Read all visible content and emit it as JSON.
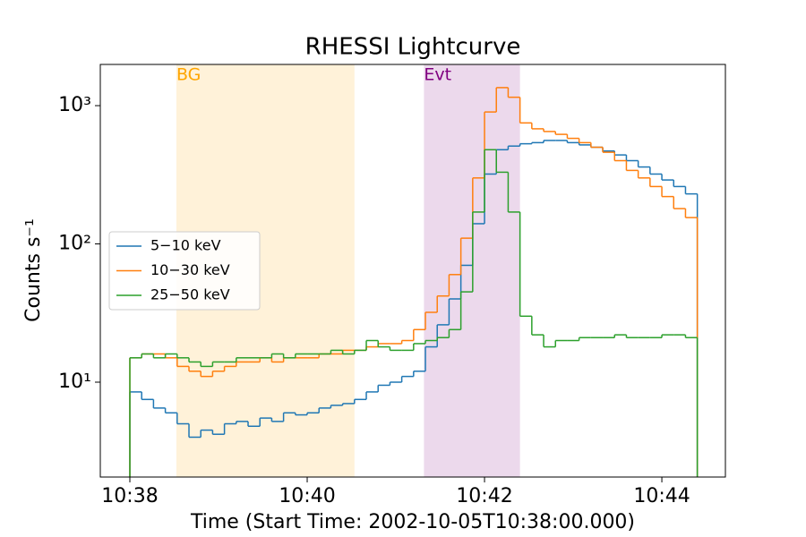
{
  "chart_data": {
    "type": "step",
    "title": "RHESSI Lightcurve",
    "xlabel": "Time (Start Time: 2002-10-05T10:38:00.000)",
    "ylabel": "Counts s⁻¹",
    "x": [
      0,
      8,
      16,
      24,
      32,
      40,
      48,
      56,
      64,
      72,
      80,
      88,
      96,
      104,
      112,
      120,
      128,
      136,
      144,
      152,
      160,
      168,
      176,
      184,
      192,
      200,
      208,
      216,
      224,
      232,
      240,
      248,
      256,
      264,
      272,
      280,
      288,
      296,
      304,
      312,
      320,
      328,
      336,
      344,
      352,
      360,
      368,
      376
    ],
    "series": [
      {
        "name": "5−10 keV",
        "color": "#1f77b4",
        "values": [
          8.5,
          7.5,
          6.5,
          6,
          5,
          4,
          4.5,
          4.2,
          5,
          5.2,
          4.8,
          5.5,
          5.2,
          6,
          5.8,
          6,
          6.5,
          6.8,
          7,
          7.5,
          8.5,
          9.5,
          10,
          11,
          12,
          18,
          26,
          40,
          70,
          140,
          320,
          480,
          510,
          530,
          540,
          560,
          560,
          540,
          520,
          500,
          470,
          440,
          400,
          360,
          320,
          290,
          260,
          230
        ]
      },
      {
        "name": "10−30 keV",
        "color": "#ff7f0e",
        "values": [
          15,
          16,
          16,
          15,
          13,
          12,
          11,
          12,
          13,
          14,
          14,
          15,
          14,
          15,
          15,
          15,
          16,
          16,
          17,
          17,
          18,
          19,
          19,
          20,
          24,
          32,
          42,
          60,
          110,
          300,
          900,
          1350,
          1150,
          750,
          680,
          650,
          620,
          580,
          540,
          500,
          460,
          400,
          340,
          300,
          260,
          220,
          180,
          155
        ]
      },
      {
        "name": "25−50 keV",
        "color": "#2ca02c",
        "values": [
          15,
          16,
          15,
          16,
          15,
          14,
          13,
          14,
          14,
          15,
          15,
          15,
          16,
          15,
          16,
          16,
          16,
          17,
          16,
          17,
          20,
          18,
          17,
          17,
          19,
          20,
          21,
          24,
          45,
          170,
          480,
          330,
          170,
          30,
          22,
          18,
          20,
          20,
          21,
          21,
          21,
          22,
          21,
          21,
          21,
          22,
          22,
          21
        ]
      }
    ],
    "spans": [
      {
        "label": "BG",
        "start": 31.5,
        "end": 152,
        "color": "#ffa500"
      },
      {
        "label": "Evt",
        "start": 199,
        "end": 264,
        "color": "#800080"
      }
    ],
    "xlim": [
      -20,
      403
    ],
    "xticks": [
      {
        "value": 0,
        "label": "10:38"
      },
      {
        "value": 120,
        "label": "10:40"
      },
      {
        "value": 240,
        "label": "10:42"
      },
      {
        "value": 360,
        "label": "10:44"
      }
    ],
    "ylim": [
      2.06,
      1986
    ],
    "log_y": true,
    "yticks": [
      {
        "value": 10,
        "label": "10¹"
      },
      {
        "value": 100,
        "label": "10²"
      },
      {
        "value": 1000,
        "label": "10³"
      }
    ],
    "legend": "center left"
  }
}
